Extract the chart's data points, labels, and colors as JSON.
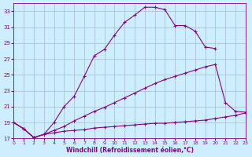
{
  "xlabel": "Windchill (Refroidissement éolien,°C)",
  "bg_color": "#cceeff",
  "grid_color": "#aabbcc",
  "line_color": "#880088",
  "xmin": 0,
  "xmax": 23,
  "ymin": 17,
  "ymax": 34,
  "yticks": [
    17,
    19,
    21,
    23,
    25,
    27,
    29,
    31,
    33
  ],
  "xticks": [
    0,
    1,
    2,
    3,
    4,
    5,
    6,
    7,
    8,
    9,
    10,
    11,
    12,
    13,
    14,
    15,
    16,
    17,
    18,
    19,
    20,
    21,
    22,
    23
  ],
  "curve1_x": [
    0,
    1,
    2,
    3,
    4,
    5,
    6,
    7,
    8,
    9,
    10,
    11,
    12,
    13,
    14,
    15,
    16,
    17,
    18,
    19,
    20
  ],
  "curve1_y": [
    19.0,
    18.2,
    17.1,
    17.5,
    19.0,
    21.0,
    22.3,
    24.8,
    27.4,
    28.2,
    30.0,
    31.6,
    32.5,
    33.5,
    33.5,
    33.2,
    31.2,
    31.2,
    30.5,
    28.5,
    28.3
  ],
  "curve2_x": [
    0,
    1,
    2,
    3,
    4,
    5,
    6,
    7,
    8,
    9,
    10,
    11,
    12,
    13,
    14,
    15,
    16,
    17,
    18,
    19,
    20,
    21,
    22,
    23
  ],
  "curve2_y": [
    19.0,
    18.2,
    17.1,
    17.5,
    18.0,
    18.5,
    19.2,
    19.8,
    20.4,
    20.9,
    21.5,
    22.1,
    22.7,
    23.3,
    23.9,
    24.4,
    24.8,
    25.2,
    25.6,
    26.0,
    26.3,
    21.5,
    20.4,
    20.3
  ],
  "curve3_x": [
    0,
    1,
    2,
    3,
    4,
    5,
    6,
    7,
    8,
    9,
    10,
    11,
    12,
    13,
    14,
    15,
    16,
    17,
    18,
    19,
    20,
    21,
    22,
    23
  ],
  "curve3_y": [
    19.0,
    18.2,
    17.1,
    17.5,
    17.7,
    17.9,
    18.0,
    18.1,
    18.3,
    18.4,
    18.5,
    18.6,
    18.7,
    18.8,
    18.9,
    18.9,
    19.0,
    19.1,
    19.2,
    19.3,
    19.5,
    19.7,
    19.9,
    20.2
  ]
}
